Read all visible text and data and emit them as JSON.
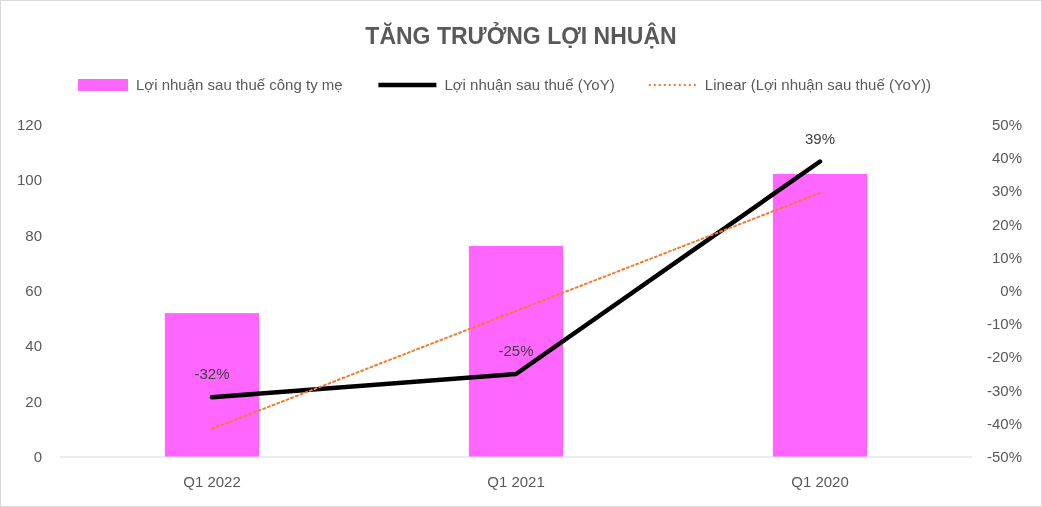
{
  "chart_data": {
    "type": "bar",
    "title": "TĂNG TRƯỞNG LỢI NHUẬN",
    "categories": [
      "Q1 2022",
      "Q1 2021",
      "Q1 2020"
    ],
    "series": [
      {
        "name": "Lợi nhuận sau thuế công ty mẹ",
        "color": "#ff66ff",
        "values": [
          52,
          76.3,
          102.3
        ]
      },
      {
        "name": "Lợi nhuận sau thuế (YoY)",
        "type": "line",
        "axis": "y2",
        "color": "#000000",
        "line_style": "solid",
        "values": [
          -32,
          -25,
          39
        ],
        "value_labels": [
          "-32%",
          "-25%",
          "39%"
        ]
      },
      {
        "name": "Linear (Lợi nhuận sau thuế (YoY))",
        "type": "line",
        "axis": "y2",
        "color": "#ed7d31",
        "line_style": "dotted",
        "values": [
          -41.5,
          -6,
          29.5
        ]
      }
    ],
    "ylim": [
      0,
      120
    ],
    "yticks": [
      0,
      20,
      40,
      60,
      80,
      100,
      120
    ],
    "y2lim": [
      -50,
      50
    ],
    "y2ticks": [
      {
        "value": -50,
        "label": "-50%"
      },
      {
        "value": -40,
        "label": "-40%"
      },
      {
        "value": -30,
        "label": "-30%"
      },
      {
        "value": -20,
        "label": "-20%"
      },
      {
        "value": -10,
        "label": "-10%"
      },
      {
        "value": 0,
        "label": "0%"
      },
      {
        "value": 10,
        "label": "10%"
      },
      {
        "value": 20,
        "label": "20%"
      },
      {
        "value": 30,
        "label": "30%"
      },
      {
        "value": 40,
        "label": "40%"
      },
      {
        "value": 50,
        "label": "50%"
      }
    ],
    "legend": "top"
  }
}
